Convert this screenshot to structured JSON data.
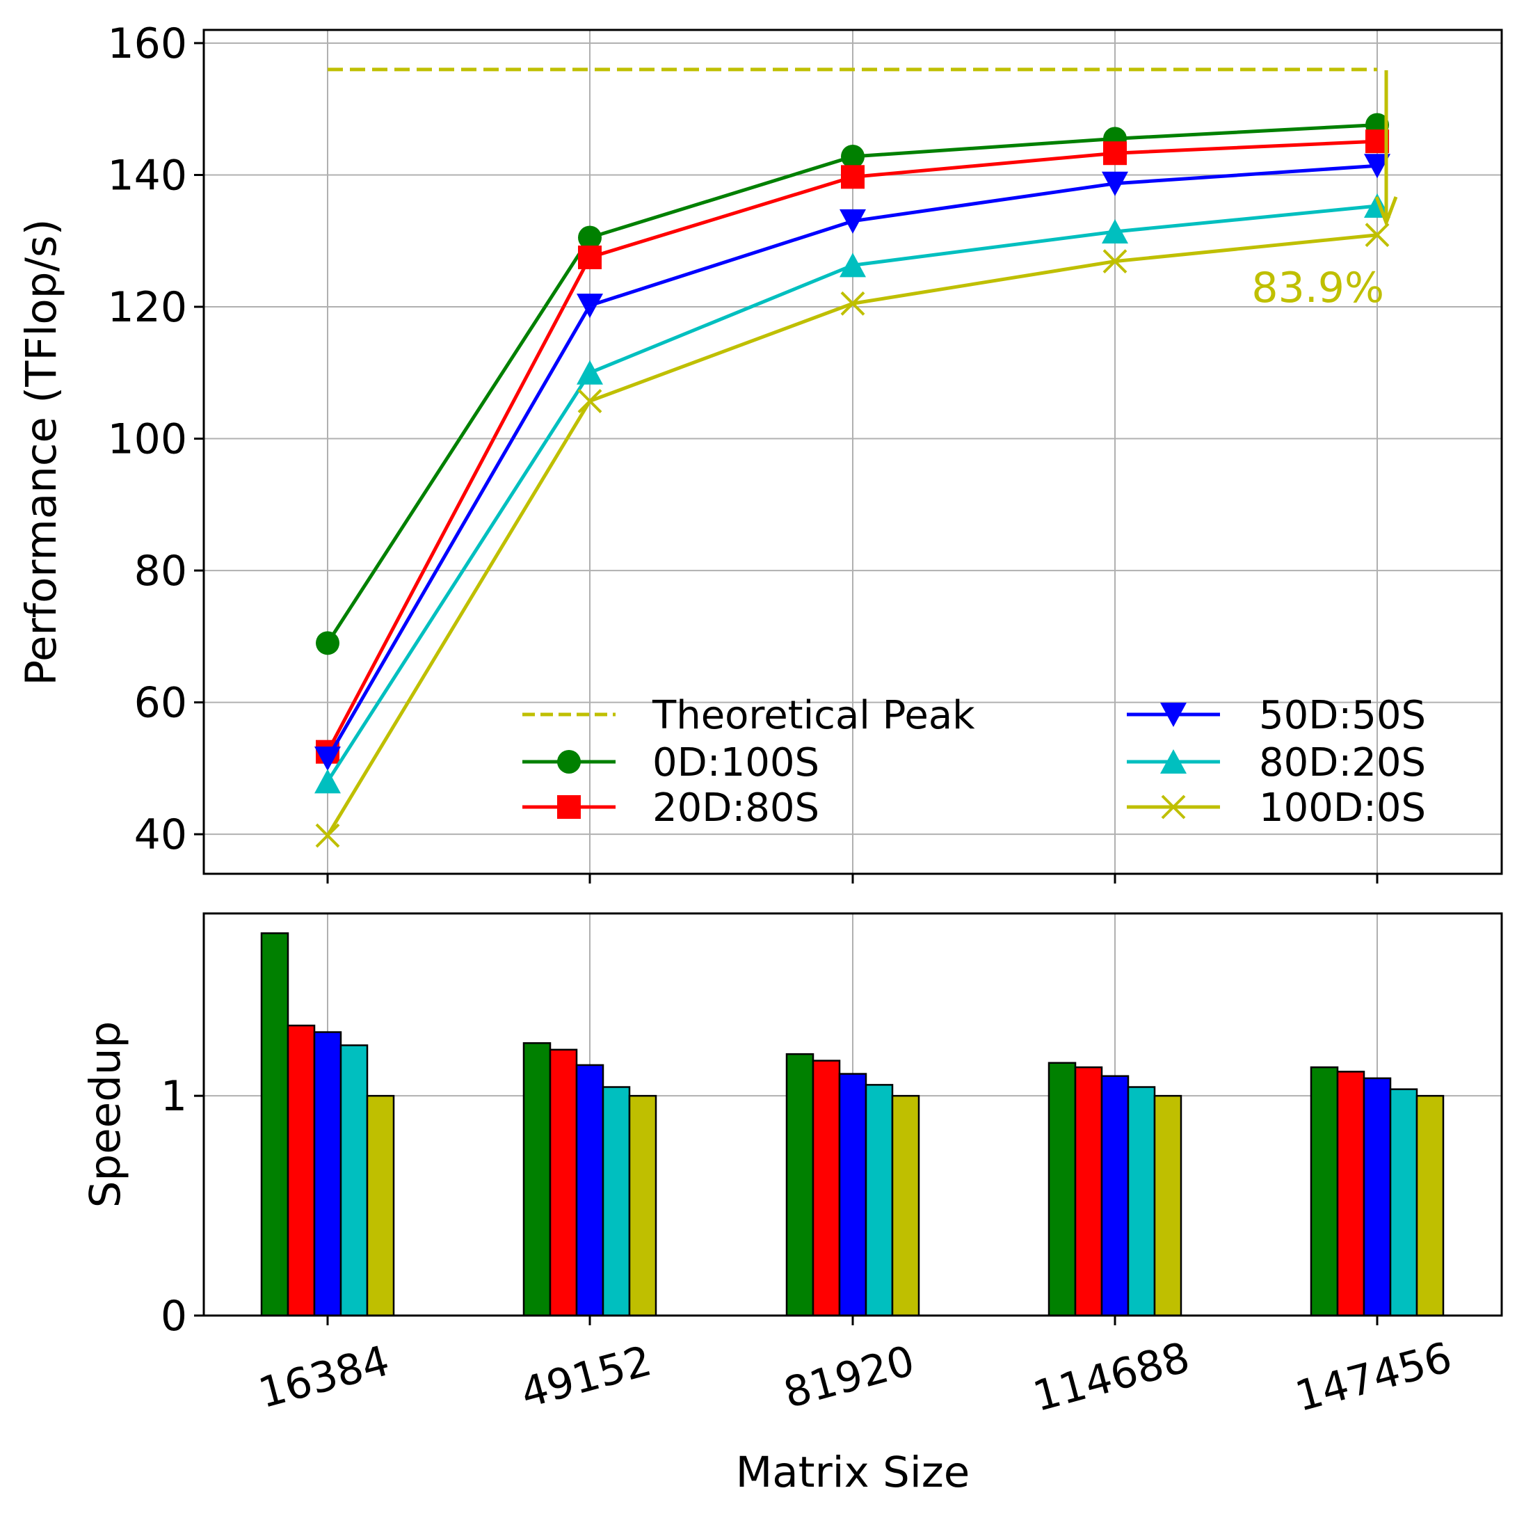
{
  "chart_data": [
    {
      "type": "line",
      "ylabel": "Performance (TFlop/s)",
      "categories": [
        "16384",
        "49152",
        "81920",
        "114688",
        "147456"
      ],
      "ylim": [
        34,
        162
      ],
      "yticks": [
        40,
        60,
        80,
        100,
        120,
        140,
        160
      ],
      "grid": true,
      "legend_position": "lower-right",
      "legend_columns": 2,
      "reference_line": {
        "name": "Theoretical Peak",
        "value": 156,
        "color": "#bfbf00",
        "style": "dashed"
      },
      "annotation": {
        "text": "83.9%",
        "color": "#bfbf00",
        "arrow_from": 156,
        "arrow_to": 131
      },
      "series": [
        {
          "name": "0D:100S",
          "color": "#008000",
          "marker": "circle",
          "values": [
            69,
            130.5,
            142.8,
            145.5,
            147.6
          ]
        },
        {
          "name": "20D:80S",
          "color": "#ff0000",
          "marker": "square",
          "values": [
            52.5,
            127.5,
            139.7,
            143.3,
            145.1
          ]
        },
        {
          "name": "50D:50S",
          "color": "#0000ff",
          "marker": "triangle-down",
          "values": [
            51.5,
            120.2,
            133,
            138.7,
            141.4
          ]
        },
        {
          "name": "80D:20S",
          "color": "#00bfbf",
          "marker": "triangle-up",
          "values": [
            48,
            110,
            126.3,
            131.4,
            135.3
          ]
        },
        {
          "name": "100D:0S",
          "color": "#bfbf00",
          "marker": "x",
          "values": [
            39.8,
            105.7,
            120.5,
            126.9,
            130.9
          ]
        }
      ]
    },
    {
      "type": "bar",
      "ylabel": "Speedup",
      "xlabel": "Matrix Size",
      "categories": [
        "16384",
        "49152",
        "81920",
        "114688",
        "147456"
      ],
      "ylim": [
        0,
        1.83
      ],
      "yticks": [
        0,
        1
      ],
      "grid": true,
      "series": [
        {
          "name": "0D:100S",
          "color": "#008000",
          "values": [
            1.74,
            1.24,
            1.19,
            1.15,
            1.13
          ]
        },
        {
          "name": "20D:80S",
          "color": "#ff0000",
          "values": [
            1.32,
            1.21,
            1.16,
            1.13,
            1.11
          ]
        },
        {
          "name": "50D:50S",
          "color": "#0000ff",
          "values": [
            1.29,
            1.14,
            1.1,
            1.09,
            1.08
          ]
        },
        {
          "name": "80D:20S",
          "color": "#00bfbf",
          "values": [
            1.23,
            1.04,
            1.05,
            1.04,
            1.03
          ]
        },
        {
          "name": "100D:0S",
          "color": "#bfbf00",
          "values": [
            1.0,
            1.0,
            1.0,
            1.0,
            1.0
          ]
        }
      ]
    }
  ]
}
